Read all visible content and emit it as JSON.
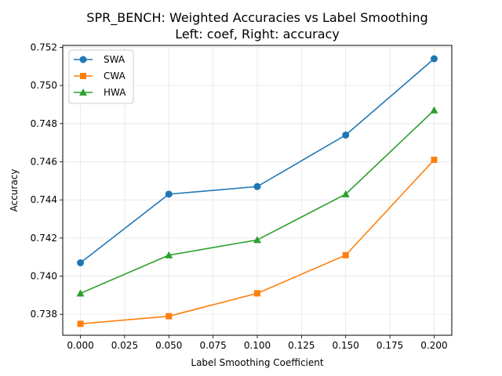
{
  "chart_data": {
    "type": "line",
    "title_line1": "SPR_BENCH: Weighted Accuracies vs Label Smoothing",
    "title_line2": "Left: coef, Right: accuracy",
    "xlabel": "Label Smoothing Coefficient",
    "ylabel": "Accuracy",
    "x": [
      0.0,
      0.05,
      0.1,
      0.15,
      0.2
    ],
    "xlim": [
      -0.01,
      0.21
    ],
    "ylim": [
      0.7369,
      0.7521
    ],
    "xticks": [
      "0.000",
      "0.025",
      "0.050",
      "0.075",
      "0.100",
      "0.125",
      "0.150",
      "0.175",
      "0.200"
    ],
    "xtick_values": [
      0.0,
      0.025,
      0.05,
      0.075,
      0.1,
      0.125,
      0.15,
      0.175,
      0.2
    ],
    "yticks": [
      "0.738",
      "0.740",
      "0.742",
      "0.744",
      "0.746",
      "0.748",
      "0.750",
      "0.752"
    ],
    "ytick_values": [
      0.738,
      0.74,
      0.742,
      0.744,
      0.746,
      0.748,
      0.75,
      0.752
    ],
    "grid": true,
    "legend_position": "top-left",
    "series": [
      {
        "name": "SWA",
        "color": "#1f77b4",
        "marker": "circle",
        "values": [
          0.7407,
          0.7443,
          0.7447,
          0.7474,
          0.7514
        ]
      },
      {
        "name": "CWA",
        "color": "#ff7f0e",
        "marker": "square",
        "values": [
          0.7375,
          0.7379,
          0.7391,
          0.7411,
          0.7461
        ]
      },
      {
        "name": "HWA",
        "color": "#2ca02c",
        "marker": "triangle",
        "values": [
          0.7391,
          0.7411,
          0.7419,
          0.7443,
          0.7487
        ]
      }
    ]
  }
}
